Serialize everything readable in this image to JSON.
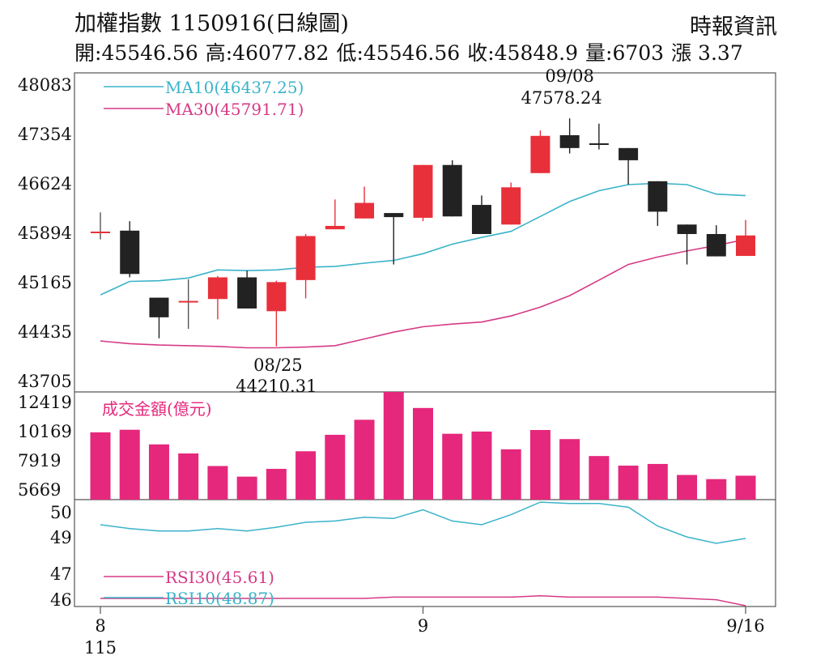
{
  "header": {
    "title": "加權指數 1150916(日線圖)",
    "source": "時報資訊",
    "stats": [
      {
        "label": "開:",
        "value": "45546.56"
      },
      {
        "label": "高:",
        "value": "46077.82"
      },
      {
        "label": "低:",
        "value": "45546.56"
      },
      {
        "label": "收:",
        "value": "45848.9"
      },
      {
        "label": "量:",
        "value": "6703"
      },
      {
        "label": "漲",
        "value": " 3.37"
      }
    ]
  },
  "chart_data": [
    {
      "type": "candlestick",
      "y_ticks": [
        "48083",
        "47354",
        "46624",
        "45894",
        "45165",
        "44435",
        "43705"
      ],
      "ylim": [
        43705,
        48083
      ],
      "grid": false,
      "up_color": "#e8303a",
      "down_color": "#222222",
      "candles": [
        {
          "open": 45894,
          "close": 45894,
          "high": 46190,
          "low": 45790
        },
        {
          "open": 45920,
          "close": 45280,
          "high": 46060,
          "low": 45230
        },
        {
          "open": 44930,
          "close": 44640,
          "high": 44930,
          "low": 44330
        },
        {
          "open": 44870,
          "close": 44870,
          "high": 45200,
          "low": 44470
        },
        {
          "open": 44910,
          "close": 45230,
          "high": 45250,
          "low": 44610
        },
        {
          "open": 45230,
          "close": 44770,
          "high": 45330,
          "low": 44770
        },
        {
          "open": 44730,
          "close": 45160,
          "high": 45180,
          "low": 44210.31
        },
        {
          "open": 45190,
          "close": 45840,
          "high": 45870,
          "low": 44920
        },
        {
          "open": 45940,
          "close": 45990,
          "high": 46380,
          "low": 45940
        },
        {
          "open": 46100,
          "close": 46330,
          "high": 46570,
          "low": 46100
        },
        {
          "open": 46180,
          "close": 46120,
          "high": 46180,
          "low": 45420
        },
        {
          "open": 46110,
          "close": 46890,
          "high": 46890,
          "low": 46060
        },
        {
          "open": 46890,
          "close": 46130,
          "high": 46960,
          "low": 46130
        },
        {
          "open": 46300,
          "close": 45870,
          "high": 46440,
          "low": 45870
        },
        {
          "open": 46010,
          "close": 46560,
          "high": 46630,
          "low": 46010
        },
        {
          "open": 46770,
          "close": 47320,
          "high": 47400,
          "low": 46770
        },
        {
          "open": 47330,
          "close": 47140,
          "high": 47578.24,
          "low": 47060
        },
        {
          "open": 47210,
          "close": 47190,
          "high": 47500,
          "low": 47120
        },
        {
          "open": 47140,
          "close": 46960,
          "high": 47140,
          "low": 46600
        },
        {
          "open": 46650,
          "close": 46200,
          "high": 46650,
          "low": 45990
        },
        {
          "open": 46010,
          "close": 45870,
          "high": 46010,
          "low": 45420
        },
        {
          "open": 45870,
          "close": 45540,
          "high": 46000,
          "low": 45540
        },
        {
          "open": 45546.56,
          "close": 45848.9,
          "high": 46077.82,
          "low": 45546.56
        }
      ],
      "series": [
        {
          "name": "MA10(46437.25)",
          "color": "#3bb3c9",
          "values": [
            44970,
            45170,
            45180,
            45220,
            45340,
            45330,
            45340,
            45380,
            45390,
            45440,
            45480,
            45580,
            45720,
            45820,
            45910,
            46130,
            46350,
            46510,
            46600,
            46620,
            46600,
            46460,
            46437.25
          ]
        },
        {
          "name": "MA30(45791.71)",
          "color": "#d53a86",
          "values": [
            44290,
            44250,
            44230,
            44220,
            44210,
            44190,
            44190,
            44200,
            44220,
            44320,
            44420,
            44500,
            44540,
            44570,
            44660,
            44790,
            44960,
            45190,
            45420,
            45530,
            45620,
            45700,
            45791.71
          ]
        }
      ],
      "annotations": [
        {
          "date": "09/08",
          "value": "47578.24"
        },
        {
          "date": "08/25",
          "value": "44210.31"
        }
      ]
    },
    {
      "type": "bar",
      "title": "成交金額(億元)",
      "y_ticks": [
        "12419",
        "10169",
        "7919",
        "5669"
      ],
      "ylim": [
        5669,
        12419
      ],
      "color": "#e5287c",
      "values": [
        10050,
        10250,
        9120,
        8420,
        7450,
        6630,
        7230,
        8590,
        9860,
        11020,
        13250,
        11930,
        9940,
        10110,
        8740,
        10230,
        9530,
        8220,
        7480,
        7610,
        6760,
        6440,
        6703
      ]
    },
    {
      "type": "line",
      "y_ticks": [
        "50",
        "49",
        "47",
        "46"
      ],
      "series": [
        {
          "name": "RSI30(45.61)",
          "color": "#d53a86",
          "values": [
            46.0,
            46.0,
            46.0,
            46.0,
            46.0,
            46.0,
            46.0,
            46.0,
            46.0,
            46.0,
            46.05,
            46.05,
            46.05,
            46.05,
            46.05,
            46.1,
            46.05,
            46.05,
            46.05,
            46.05,
            46.0,
            45.95,
            45.61
          ]
        },
        {
          "name": "RSI10(48.87)",
          "color": "#3bb3c9",
          "values": [
            49.45,
            49.3,
            49.2,
            49.2,
            49.3,
            49.2,
            49.35,
            49.55,
            49.6,
            49.75,
            49.7,
            50.05,
            49.6,
            49.45,
            49.85,
            50.35,
            50.3,
            50.3,
            50.15,
            49.4,
            48.95,
            48.6,
            48.87
          ]
        }
      ]
    }
  ],
  "x_axis": {
    "labels": [
      {
        "index": 0,
        "text": "8"
      },
      {
        "index": 11,
        "text": "9"
      },
      {
        "index": 22,
        "text": "9/16"
      }
    ],
    "year": "115"
  }
}
